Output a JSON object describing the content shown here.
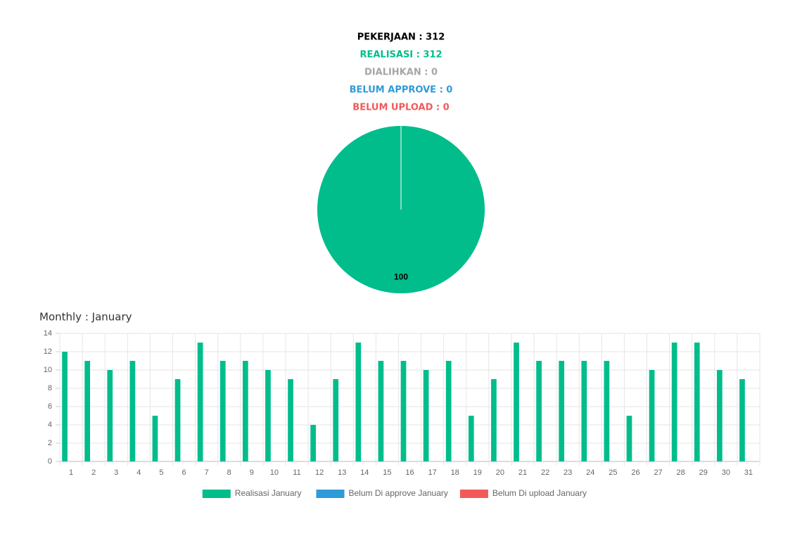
{
  "summary": [
    {
      "text": "PEKERJAAN : 312",
      "color": "#000000"
    },
    {
      "text": "REALISASI : 312",
      "color": "#00bd8b"
    },
    {
      "text": "DIALIHKAN : 0",
      "color": "#a6a6a6"
    },
    {
      "text": "BELUM APPROVE : 0",
      "color": "#2f9ad8"
    },
    {
      "text": "BELUM UPLOAD : 0",
      "color": "#f25a5a"
    }
  ],
  "chart_data": [
    {
      "type": "pie",
      "values": [
        100
      ],
      "colors": [
        "#00bd8b"
      ]
    },
    {
      "type": "bar",
      "title": "Monthly : January",
      "categories": [
        "1",
        "2",
        "3",
        "4",
        "5",
        "6",
        "7",
        "8",
        "9",
        "10",
        "11",
        "12",
        "13",
        "14",
        "15",
        "16",
        "17",
        "18",
        "19",
        "20",
        "21",
        "22",
        "23",
        "24",
        "25",
        "26",
        "27",
        "28",
        "29",
        "30",
        "31"
      ],
      "series": [
        {
          "name": "Realisasi January",
          "color": "#00bd8b",
          "values": [
            12,
            11,
            10,
            11,
            5,
            9,
            13,
            11,
            11,
            10,
            9,
            4,
            9,
            13,
            11,
            11,
            10,
            11,
            5,
            9,
            13,
            11,
            11,
            11,
            11,
            5,
            10,
            13,
            13,
            10,
            9
          ]
        },
        {
          "name": "Belum Di approve January",
          "color": "#2f9ad8",
          "values": [
            0,
            0,
            0,
            0,
            0,
            0,
            0,
            0,
            0,
            0,
            0,
            0,
            0,
            0,
            0,
            0,
            0,
            0,
            0,
            0,
            0,
            0,
            0,
            0,
            0,
            0,
            0,
            0,
            0,
            0,
            0
          ]
        },
        {
          "name": "Belum Di upload January",
          "color": "#f25a5a",
          "values": [
            0,
            0,
            0,
            0,
            0,
            0,
            0,
            0,
            0,
            0,
            0,
            0,
            0,
            0,
            0,
            0,
            0,
            0,
            0,
            0,
            0,
            0,
            0,
            0,
            0,
            0,
            0,
            0,
            0,
            0,
            0
          ]
        }
      ],
      "ylim": [
        0,
        14
      ],
      "yticks": [
        0,
        2,
        4,
        6,
        8,
        10,
        12,
        14
      ],
      "grid": true,
      "legend": "bottom"
    }
  ]
}
